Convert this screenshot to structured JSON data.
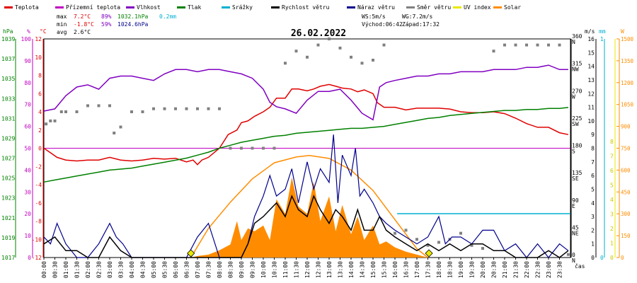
{
  "legend": [
    {
      "label": "Teplota",
      "color": "#e00000"
    },
    {
      "label": "Přízemní teplota",
      "color": "#c000c0"
    },
    {
      "label": "Vlhkost",
      "color": "#8000c0"
    },
    {
      "label": "Tlak",
      "color": "#008000"
    },
    {
      "label": "Srážky",
      "color": "#00b0d0"
    },
    {
      "label": "Rychlost větru",
      "color": "#000000"
    },
    {
      "label": "Náraz větru",
      "color": "#00008b"
    },
    {
      "label": "Směr větru",
      "color": "#808080"
    },
    {
      "label": "UV index",
      "color": "#e8e800"
    },
    {
      "label": "Solar",
      "color": "#ff8c00"
    }
  ],
  "stats": {
    "max_label": "max",
    "max_temp": "7.2°C",
    "max_hum": "89%",
    "max_press": "1032.1hPa",
    "rain": "0.2mm",
    "min_label": "min",
    "min_temp": "-1.8°C",
    "min_hum": "59%",
    "min_press": "1024.6hPa",
    "avg_label": "avg",
    "avg_temp": "2.6°C",
    "ws": "WS:5m/s",
    "wg": "WG:7.2m/s",
    "sunrise": "Východ:06:42",
    "sunset": "Západ:17:32"
  },
  "chart_data": {
    "type": "line",
    "title": "26.02.2022",
    "x_unit_label": "čas",
    "x_ticks": [
      "00:00",
      "00:30",
      "01:00",
      "01:30",
      "02:00",
      "02:30",
      "03:00",
      "03:30",
      "04:00",
      "04:30",
      "05:00",
      "05:30",
      "06:00",
      "06:30",
      "07:00",
      "07:30",
      "08:00",
      "08:30",
      "09:00",
      "09:30",
      "10:00",
      "10:30",
      "11:00",
      "11:30",
      "12:00",
      "12:30",
      "13:00",
      "13:30",
      "14:00",
      "14:30",
      "15:00",
      "15:30",
      "16:00",
      "16:30",
      "17:00",
      "17:30",
      "18:00",
      "18:30",
      "19:00",
      "19:30",
      "20:00",
      "20:30",
      "21:00",
      "21:30",
      "22:00",
      "22:30",
      "23:00",
      "23:30"
    ],
    "axes": {
      "pressure": {
        "unit": "hPa",
        "min": 1017,
        "max": 1039,
        "ticks": [
          "1039",
          "1037",
          "1035",
          "1033",
          "1031",
          "1029",
          "1027",
          "1025",
          "1023",
          "1021",
          "1019",
          "1017"
        ]
      },
      "humidity": {
        "unit": "%",
        "min": 0,
        "max": 100,
        "ticks": [
          "100",
          "90",
          "80",
          "70",
          "60",
          "50",
          "40",
          "30",
          "20",
          "10",
          "0"
        ]
      },
      "temperature": {
        "unit": "°C",
        "min": -12,
        "max": 12,
        "ticks": [
          "12",
          "10",
          "8",
          "6",
          "4",
          "2",
          "0",
          "-2",
          "-4",
          "-6",
          "-8",
          "-10",
          "-12"
        ]
      },
      "wind_direction": {
        "ticks": [
          {
            "v": "360",
            "d": "N"
          },
          {
            "v": "315",
            "d": "NW"
          },
          {
            "v": "270",
            "d": "W"
          },
          {
            "v": "225",
            "d": "SW"
          },
          {
            "v": "180",
            "d": "S"
          },
          {
            "v": "135",
            "d": "SE"
          },
          {
            "v": "90",
            "d": "E"
          },
          {
            "v": "45",
            "d": "NE"
          },
          {
            "v": "0",
            "d": "N"
          }
        ]
      },
      "wind_speed": {
        "unit": "m/s",
        "min": 0,
        "max": 16,
        "ticks": [
          "16",
          "15",
          "14",
          "13",
          "12",
          "11",
          "10",
          "9",
          "8",
          "7",
          "6",
          "5",
          "4",
          "3",
          "2",
          "1",
          "0"
        ]
      },
      "rain": {
        "unit": "mm",
        "ticks": [
          "1",
          "0"
        ]
      },
      "uv": {
        "ticks": [
          "8",
          "7",
          "6",
          "5",
          "4",
          "3",
          "2",
          "1",
          "0"
        ]
      },
      "solar": {
        "unit": "W",
        "ticks": [
          "1500",
          "1350",
          "1200",
          "1050",
          "900",
          "750",
          "600",
          "450",
          "300",
          "150",
          "0"
        ]
      }
    },
    "series": [
      {
        "name": "Teplota",
        "color": "#e00000",
        "x": [
          0,
          0.3,
          0.6,
          1,
          1.5,
          2,
          2.5,
          3,
          3.5,
          4,
          4.5,
          5,
          5.5,
          6,
          6.5,
          6.8,
          7,
          7.2,
          7.5,
          8,
          8.4,
          8.8,
          9,
          9.3,
          9.6,
          10,
          10.3,
          10.6,
          11,
          11.3,
          11.6,
          12,
          12.3,
          12.6,
          13,
          13.3,
          13.6,
          14,
          14.3,
          14.6,
          15,
          15.2,
          15.5,
          16,
          16.5,
          17,
          17.5,
          18,
          18.5,
          19,
          19.5,
          20,
          20.5,
          21,
          21.5,
          22,
          22.5,
          23,
          23.5,
          23.9
        ],
        "y": [
          0,
          -0.5,
          -1,
          -1.3,
          -1.4,
          -1.3,
          -1.3,
          -1,
          -1.3,
          -1.4,
          -1.3,
          -1.1,
          -1.2,
          -1.1,
          -1.5,
          -1.3,
          -1.8,
          -1.3,
          -1,
          0,
          1.5,
          2,
          2.8,
          3,
          3.5,
          4,
          4.5,
          5.5,
          5.5,
          6.5,
          6.5,
          6.3,
          6.5,
          6.8,
          7,
          6.8,
          6.6,
          6.5,
          6.2,
          6.4,
          6,
          5,
          4.5,
          4.5,
          4.2,
          4.4,
          4.4,
          4.4,
          4.3,
          4,
          3.9,
          3.9,
          4,
          3.8,
          3.3,
          2.7,
          2.3,
          2.3,
          1.7,
          1.5
        ]
      },
      {
        "name": "Vlhkost",
        "color": "#8000c0",
        "x": [
          0,
          0.5,
          1,
          1.5,
          2,
          2.5,
          3,
          3.5,
          4,
          4.5,
          5,
          5.5,
          6,
          6.5,
          7,
          7.5,
          8,
          8.5,
          9,
          9.5,
          10,
          10.3,
          10.6,
          11,
          11.5,
          12,
          12.5,
          13,
          13.5,
          14,
          14.5,
          15,
          15.3,
          15.6,
          16,
          16.5,
          17,
          17.5,
          18,
          18.5,
          19,
          19.5,
          20,
          20.5,
          21,
          21.5,
          22,
          22.5,
          23,
          23.5,
          23.9
        ],
        "y": [
          67,
          68,
          74,
          78,
          79,
          77,
          82,
          83,
          83,
          82,
          81,
          84,
          86,
          86,
          85,
          86,
          86,
          85,
          84,
          82,
          77,
          71,
          69,
          68,
          66,
          72,
          76,
          76,
          77,
          72,
          66,
          63,
          78,
          80,
          81,
          82,
          83,
          83,
          84,
          84,
          85,
          85,
          85,
          86,
          86,
          86,
          87,
          87,
          88,
          86,
          86
        ]
      },
      {
        "name": "Tlak",
        "color": "#008000",
        "x": [
          0,
          0.5,
          1,
          1.5,
          2,
          2.5,
          3,
          3.5,
          4,
          4.5,
          5,
          5.5,
          6,
          6.5,
          7,
          7.5,
          8,
          8.5,
          9,
          9.5,
          10,
          10.5,
          11,
          11.5,
          12,
          12.5,
          13,
          13.5,
          14,
          14.5,
          15,
          15.5,
          16,
          16.5,
          17,
          17.5,
          18,
          18.5,
          19,
          19.5,
          20,
          20.5,
          21,
          21.5,
          22,
          22.5,
          23,
          23.5,
          23.9
        ],
        "y": [
          1024.6,
          1024.8,
          1025,
          1025.2,
          1025.4,
          1025.6,
          1025.8,
          1025.9,
          1026,
          1026.2,
          1026.4,
          1026.6,
          1026.8,
          1027,
          1027.3,
          1027.6,
          1028,
          1028.3,
          1028.6,
          1028.8,
          1029,
          1029.2,
          1029.3,
          1029.5,
          1029.6,
          1029.7,
          1029.8,
          1029.9,
          1030,
          1030,
          1030.1,
          1030.2,
          1030.4,
          1030.6,
          1030.8,
          1031,
          1031.1,
          1031.3,
          1031.4,
          1031.5,
          1031.6,
          1031.7,
          1031.8,
          1031.8,
          1031.9,
          1031.9,
          1032,
          1032,
          1032.1
        ]
      },
      {
        "name": "Přízemní teplota",
        "color": "#c000c0",
        "x": [
          0,
          23.9
        ],
        "y": [
          0,
          0
        ]
      }
    ],
    "wind_speed": {
      "x": [
        0,
        0.5,
        1,
        1.5,
        2,
        2.5,
        3,
        3.5,
        4,
        4.5,
        5,
        5.5,
        6,
        6.5,
        7,
        7.5,
        8,
        8.5,
        9,
        9.3,
        9.6,
        10,
        10.3,
        10.6,
        11,
        11.3,
        11.6,
        12,
        12.3,
        12.6,
        13,
        13.3,
        13.6,
        14,
        14.3,
        14.6,
        15,
        15.3,
        15.6,
        16,
        16.5,
        17,
        17.5,
        18,
        18.5,
        19,
        19.5,
        20,
        20.5,
        21,
        21.5,
        22,
        22.5,
        23,
        23.5,
        23.9
      ],
      "y": [
        1,
        1.5,
        0.5,
        0.5,
        0,
        0,
        1.5,
        0.5,
        0,
        0,
        0,
        0,
        0,
        0,
        0,
        0,
        0,
        0,
        0,
        1,
        2.5,
        3,
        3.5,
        4,
        3,
        4.5,
        3.5,
        3,
        4.5,
        3.5,
        2.5,
        3.5,
        3,
        2,
        3.5,
        2,
        2,
        3,
        2,
        1.5,
        1,
        0.5,
        1,
        0.5,
        1,
        0.5,
        1,
        1,
        0.5,
        0.5,
        0,
        0,
        0,
        0.5,
        0,
        0.5
      ]
    },
    "wind_gust": {
      "x": [
        0,
        0.3,
        0.6,
        1,
        1.5,
        2,
        2.5,
        3,
        3.3,
        3.6,
        4,
        4.5,
        5,
        5.5,
        6,
        6.5,
        7,
        7.5,
        8,
        8.5,
        9,
        9.3,
        9.6,
        10,
        10.3,
        10.6,
        11,
        11.3,
        11.6,
        12,
        12.3,
        12.6,
        13,
        13.2,
        13.4,
        13.6,
        14,
        14.2,
        14.4,
        14.6,
        15,
        15.3,
        15.6,
        16,
        16.5,
        17,
        17.5,
        18,
        18.3,
        18.6,
        19,
        19.5,
        20,
        20.5,
        21,
        21.5,
        22,
        22.5,
        23,
        23.5,
        23.9
      ],
      "y": [
        1.5,
        1,
        2.5,
        1,
        0,
        0,
        1,
        2.5,
        1.5,
        1,
        0,
        0,
        0,
        0,
        0,
        0,
        1.5,
        2.5,
        0,
        0,
        0,
        1,
        3,
        4.5,
        6,
        4.5,
        5,
        6.5,
        4,
        7,
        5,
        6.5,
        5.5,
        9,
        4,
        7.5,
        6,
        8,
        4.5,
        5,
        4,
        3,
        2.5,
        2,
        1.5,
        1,
        1.5,
        3,
        1,
        1.5,
        1.5,
        1,
        2,
        2,
        0.5,
        1,
        0,
        1,
        0,
        1,
        0.5
      ]
    },
    "wind_direction": {
      "x": [
        0.1,
        0.3,
        0.5,
        0.8,
        1,
        1.5,
        2,
        2.5,
        3,
        3.2,
        3.5,
        4,
        4.5,
        5,
        5.5,
        6,
        6.5,
        7,
        7.5,
        8,
        8.5,
        9,
        9.5,
        10,
        10.5,
        11,
        11.5,
        12,
        12.5,
        13,
        13.5,
        14,
        14.5,
        15,
        15.5,
        16,
        16.5,
        17,
        17.5,
        18,
        18.5,
        19,
        19.5,
        20,
        20.5,
        21,
        21.5,
        22,
        22.5,
        23,
        23.5,
        23.9
      ],
      "y": [
        220,
        225,
        225,
        240,
        240,
        240,
        250,
        250,
        250,
        205,
        215,
        240,
        240,
        245,
        245,
        245,
        245,
        245,
        245,
        245,
        180,
        180,
        180,
        180,
        180,
        320,
        340,
        330,
        350,
        360,
        345,
        330,
        320,
        325,
        350,
        40,
        45,
        30,
        20,
        25,
        30,
        40,
        20,
        15,
        340,
        350,
        350,
        350,
        350,
        350,
        350,
        5
      ]
    },
    "solar": {
      "x": [
        6.7,
        7,
        7.5,
        8,
        8.5,
        8.8,
        9,
        9.3,
        9.6,
        10,
        10.3,
        10.6,
        11,
        11.3,
        11.6,
        12,
        12.3,
        12.6,
        13,
        13.3,
        13.6,
        14,
        14.3,
        14.6,
        15,
        15.3,
        15.6,
        16,
        16.5,
        17,
        17.5
      ],
      "y": [
        0,
        10,
        20,
        50,
        90,
        250,
        120,
        200,
        180,
        220,
        120,
        400,
        300,
        550,
        350,
        300,
        520,
        250,
        420,
        180,
        360,
        160,
        280,
        120,
        220,
        90,
        110,
        70,
        40,
        20,
        0
      ]
    },
    "solar_theoretical": {
      "x": [
        6.7,
        7.5,
        8.5,
        9.5,
        10.5,
        11.5,
        12.1,
        13,
        14,
        15,
        16,
        17,
        17.5
      ],
      "y": [
        0,
        200,
        380,
        540,
        650,
        690,
        700,
        680,
        600,
        460,
        260,
        60,
        0
      ]
    },
    "uv_markers": [
      {
        "x": 6.7,
        "uv": 0
      },
      {
        "x": 17.55,
        "uv": 0
      }
    ],
    "rain_level_mm": 0.2,
    "rain_start": 16.1
  }
}
